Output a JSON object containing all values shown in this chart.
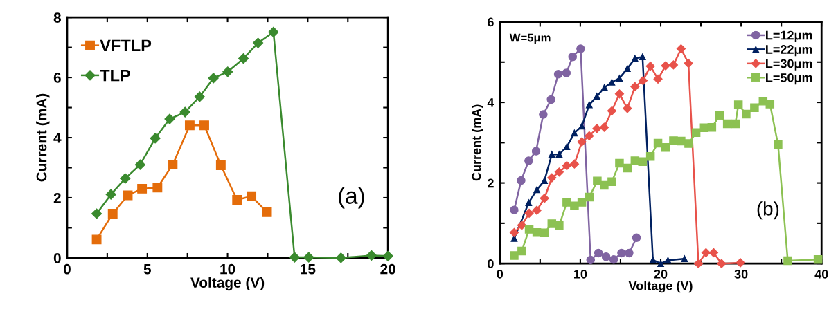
{
  "chart_data": [
    {
      "type": "line",
      "xlabel": "Voltage (V)",
      "ylabel": "Current (mA)",
      "xlim": [
        0,
        20
      ],
      "ylim": [
        0,
        8
      ],
      "xticks": [
        0,
        {
          "value": 2.5,
          "label": null
        },
        5,
        {
          "value": 7.5,
          "label": null
        },
        10,
        {
          "value": 12.5,
          "label": null
        },
        15,
        {
          "value": 17.5,
          "label": null
        },
        20
      ],
      "yticks": [
        0,
        {
          "value": 1,
          "label": null
        },
        2,
        {
          "value": 3,
          "label": null
        },
        4,
        {
          "value": 5,
          "label": null
        },
        6,
        {
          "value": 7,
          "label": null
        },
        8
      ],
      "grid": false,
      "legend": "top left",
      "line_style": "solid",
      "annotations": [
        "(a)"
      ],
      "series": [
        {
          "name": "VFTLP",
          "color": "#e46c0a",
          "marker": "square",
          "x": [
            1.84,
            2.84,
            3.78,
            4.67,
            5.63,
            6.58,
            7.64,
            8.55,
            9.58,
            10.59,
            11.49,
            12.46
          ],
          "values": [
            0.61,
            1.47,
            2.08,
            2.3,
            2.34,
            3.1,
            4.41,
            4.41,
            3.08,
            1.93,
            2.05,
            1.52
          ]
        },
        {
          "name": "TLP",
          "color": "#3a8a2e",
          "marker": "diamond",
          "x": [
            1.84,
            2.73,
            3.62,
            4.55,
            5.49,
            6.39,
            7.35,
            8.26,
            9.12,
            10.01,
            10.99,
            11.9,
            12.86,
            14.18,
            15.06,
            17.07,
            18.97,
            20
          ],
          "values": [
            1.47,
            2.11,
            2.64,
            3.1,
            3.98,
            4.62,
            4.85,
            5.36,
            5.98,
            6.19,
            6.63,
            7.15,
            7.51,
            0.02,
            0.02,
            0,
            0.08,
            0.06
          ]
        }
      ]
    },
    {
      "type": "line",
      "xlabel": "Voltage (V)",
      "ylabel": "Current (mA)",
      "xlim": [
        0,
        40
      ],
      "ylim": [
        0,
        6
      ],
      "xticks": [
        0,
        {
          "value": 5,
          "label": null
        },
        10,
        {
          "value": 15,
          "label": null
        },
        20,
        {
          "value": 25,
          "label": null
        },
        30,
        {
          "value": 35,
          "label": null
        },
        40
      ],
      "yticks": [
        0,
        {
          "value": 1,
          "label": null
        },
        2,
        {
          "value": 3,
          "label": null
        },
        4,
        {
          "value": 5,
          "label": null
        },
        6
      ],
      "grid": false,
      "legend": "top right",
      "line_style": "solid",
      "annotations": [
        "W=5μm",
        "(b)"
      ],
      "series": [
        {
          "name": "L=12μm",
          "color": "#8064a2",
          "marker": "circle",
          "x": [
            1.78,
            2.64,
            3.58,
            4.5,
            5.39,
            6.37,
            7.26,
            8.27,
            9.04,
            10.04,
            11.28,
            12.26,
            13.2,
            14.15,
            15.13,
            16.07,
            16.99
          ],
          "values": [
            1.33,
            2.06,
            2.55,
            2.79,
            3.7,
            4.07,
            4.7,
            4.73,
            5.13,
            5.33,
            0.09,
            0.26,
            0.17,
            0.1,
            0.26,
            0.26,
            0.64
          ]
        },
        {
          "name": "L=22μm",
          "color": "#002060",
          "marker": "triangle",
          "x": [
            1.78,
            3.58,
            4.59,
            5.54,
            6.46,
            7.37,
            8.32,
            9.27,
            10.19,
            11.11,
            12.06,
            13.0,
            13.92,
            14.87,
            15.85,
            16.8,
            17.74,
            19.03,
            20.0,
            20.9,
            22.96
          ],
          "values": [
            0.62,
            1.51,
            1.83,
            2.06,
            2.71,
            2.71,
            2.9,
            3.24,
            3.41,
            3.94,
            4.15,
            4.37,
            4.5,
            4.6,
            4.84,
            5.09,
            5.13,
            0.09,
            0,
            0.08,
            0.12
          ]
        },
        {
          "name": "L=30μm",
          "color": "#e8524a",
          "marker": "diamond",
          "x": [
            1.78,
            2.72,
            3.64,
            4.59,
            5.54,
            6.46,
            7.37,
            8.32,
            9.27,
            10.19,
            11.11,
            12.06,
            12.97,
            13.92,
            14.87,
            15.85,
            16.8,
            17.8,
            18.72,
            19.66,
            20.61,
            21.59,
            22.53,
            23.45,
            24.69,
            25.63,
            26.58,
            27.56,
            29.91
          ],
          "values": [
            0.77,
            0.95,
            1.25,
            1.32,
            1.62,
            2.13,
            2.27,
            2.43,
            2.47,
            3.02,
            3.17,
            3.35,
            3.38,
            3.79,
            4.21,
            3.85,
            4.39,
            4.54,
            4.9,
            4.58,
            4.91,
            4.93,
            5.33,
            4.97,
            0,
            0.27,
            0.27,
            0,
            0.02
          ]
        },
        {
          "name": "L=50μm",
          "color": "#8cc152",
          "marker": "square",
          "x": [
            1.78,
            2.72,
            3.64,
            4.59,
            5.54,
            6.46,
            7.37,
            8.32,
            9.27,
            10.19,
            11.11,
            12.11,
            12.97,
            13.92,
            14.87,
            15.85,
            16.8,
            17.74,
            18.72,
            19.66,
            20.61,
            21.59,
            22.53,
            23.48,
            24.4,
            25.41,
            26.36,
            27.33,
            28.28,
            29.28,
            29.66,
            30.63,
            31.66,
            32.73,
            33.59,
            34.59,
            35.8,
            39.56
          ],
          "values": [
            0.2,
            0.31,
            0.85,
            0.77,
            0.76,
            0.99,
            0.94,
            1.52,
            1.43,
            1.52,
            1.65,
            2.05,
            1.94,
            2.03,
            2.49,
            2.37,
            2.55,
            2.53,
            2.66,
            2.99,
            2.88,
            3.05,
            3.04,
            2.98,
            3.25,
            3.37,
            3.38,
            3.67,
            3.47,
            3.47,
            3.94,
            3.71,
            3.87,
            4.03,
            3.96,
            2.95,
            0.07,
            0.1
          ]
        }
      ]
    }
  ]
}
